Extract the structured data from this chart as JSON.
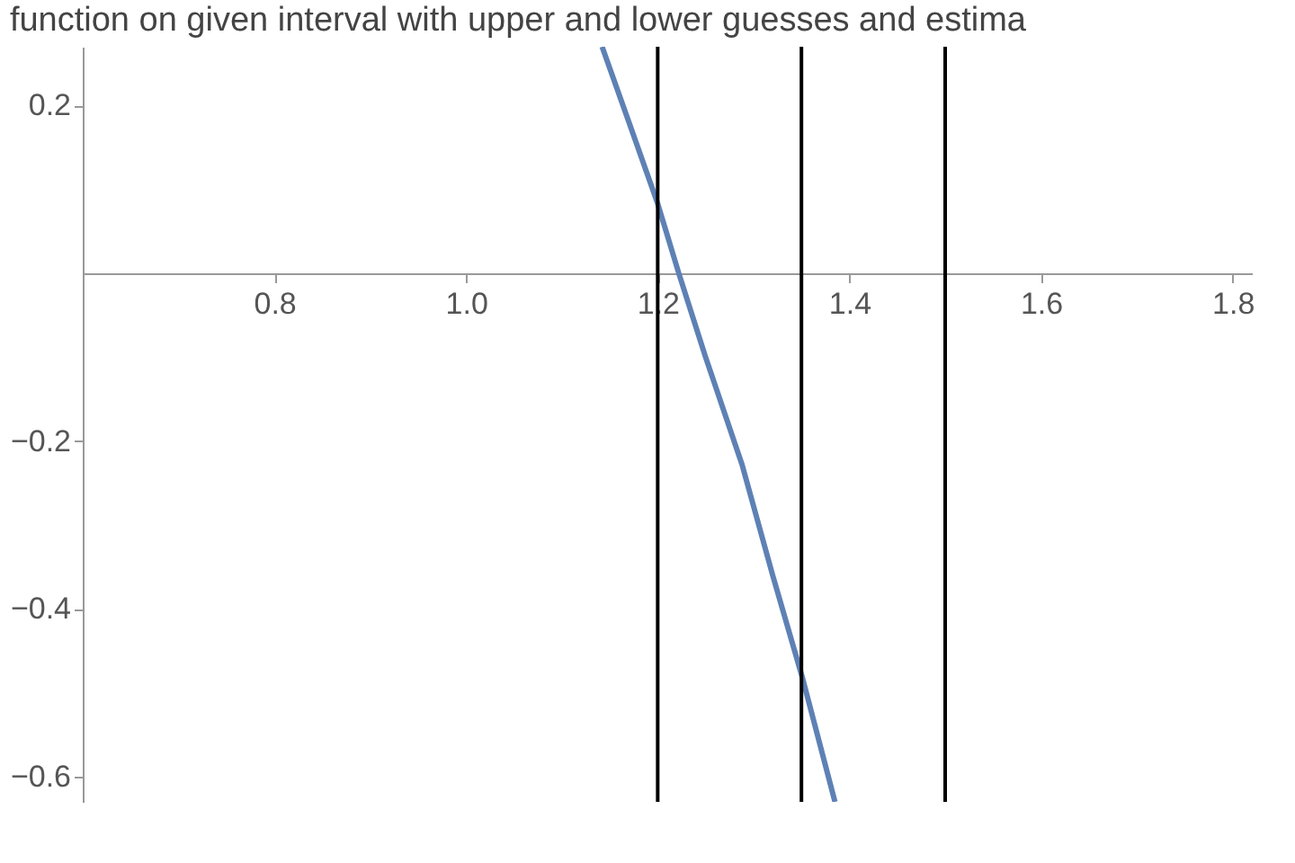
{
  "chart_data": {
    "type": "line",
    "title": "function on given interval with upper and lower guesses and estima",
    "xlim": [
      0.6,
      1.82
    ],
    "ylim": [
      -0.63,
      0.27
    ],
    "xticks": [
      0.8,
      {
        "value": 1,
        "label": "1.0"
      },
      1.2,
      1.4,
      1.6,
      1.8
    ],
    "yticks": [
      -0.6,
      -0.4,
      -0.2,
      0.2
    ],
    "grid": false,
    "marker": "none",
    "line_style": "solid",
    "series": [
      {
        "color": "#5e81b5",
        "x": [
          1.142,
          1.17,
          1.2,
          1.222,
          1.25,
          1.288,
          1.32,
          1.351,
          1.385
        ],
        "values": [
          0.27,
          0.18,
          0.083,
          0.0,
          -0.1,
          -0.228,
          -0.36,
          -0.482,
          -0.63
        ]
      }
    ],
    "ref_lines": [
      {
        "axis": "x",
        "value": 1.2,
        "color": "#000000"
      },
      {
        "axis": "x",
        "value": 1.35,
        "color": "#000000"
      },
      {
        "axis": "x",
        "value": 1.5,
        "color": "#000000"
      }
    ]
  }
}
